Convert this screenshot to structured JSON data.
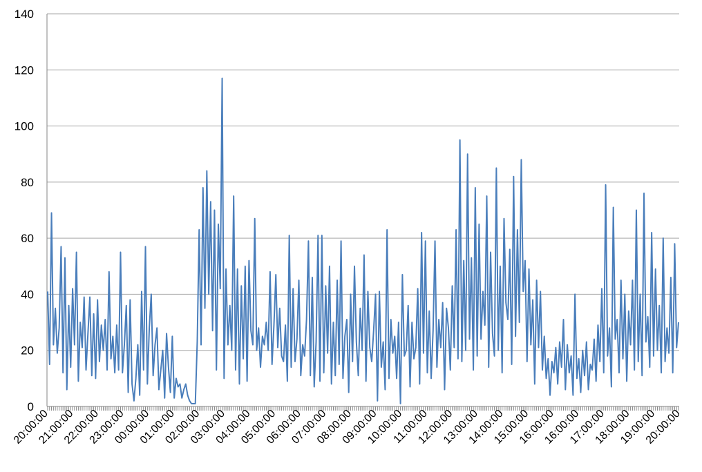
{
  "chart_data": {
    "type": "line",
    "title": "",
    "xlabel": "",
    "ylabel": "",
    "ylim": [
      0,
      140
    ],
    "yticks": [
      0,
      20,
      40,
      60,
      80,
      100,
      120,
      140
    ],
    "grid": "horizontal",
    "x_tick_labels": [
      "20:00:00",
      "21:00:00",
      "22:00:00",
      "23:00:00",
      "00:00:00",
      "01:00:00",
      "02:00:00",
      "03:00:00",
      "04:00:00",
      "05:00:00",
      "06:00:00",
      "07:00:00",
      "08:00:00",
      "09:00:00",
      "10:00:00",
      "11:00:00",
      "12:00:00",
      "13:00:00",
      "14:00:00",
      "15:00:00",
      "16:00:00",
      "16:00:00",
      "17:00:00",
      "18:00:00",
      "19:00:00",
      "20:00:00"
    ],
    "series_color": "#4a7ebb",
    "series": [
      {
        "values": [
          [
            41,
            15,
            69,
            22,
            35,
            19,
            28,
            57,
            12,
            53,
            6,
            36,
            14,
            42,
            22,
            55,
            9,
            30,
            21,
            39,
            13,
            26,
            39,
            11,
            33,
            10,
            38,
            16,
            29,
            20
          ],
          [
            31,
            13,
            48,
            17,
            25,
            12,
            29,
            13,
            55,
            12,
            22,
            36,
            5,
            38,
            8,
            2,
            10,
            22,
            4,
            41,
            13,
            57,
            8,
            28,
            40,
            11,
            22,
            28,
            6,
            13
          ],
          [
            20,
            3,
            26,
            14,
            5,
            25,
            3,
            10,
            7,
            8,
            3,
            6,
            8,
            4,
            2,
            1,
            1,
            1,
            23,
            63,
            22,
            78,
            35,
            84,
            40,
            73,
            27,
            70,
            13,
            65
          ],
          [
            42,
            117,
            10,
            49,
            22,
            36,
            20,
            75,
            13,
            49,
            8,
            43,
            17,
            50,
            9,
            52,
            27,
            22,
            67,
            20,
            28,
            14,
            25,
            22,
            30,
            20,
            48,
            15,
            29,
            47
          ],
          [
            21,
            35,
            18,
            16,
            29,
            9,
            61,
            14,
            42,
            16,
            24,
            45,
            11,
            22,
            18,
            31,
            59,
            11,
            46,
            7,
            23,
            61,
            9,
            61,
            12,
            43,
            19,
            50,
            8,
            30
          ],
          [
            11,
            45,
            15,
            59,
            10,
            25,
            31,
            5,
            40,
            16,
            50,
            23,
            11,
            35,
            20,
            54,
            9,
            41,
            21,
            16,
            27,
            40,
            2,
            41,
            14,
            23,
            6,
            63,
            10,
            31
          ],
          [
            19,
            25,
            10,
            30,
            1,
            47,
            18,
            20,
            36,
            7,
            30,
            17,
            21,
            42,
            8,
            62,
            19,
            59,
            12,
            34,
            10,
            27,
            59,
            14,
            31,
            21,
            37,
            6,
            35,
            28
          ],
          [
            13,
            43,
            21,
            63,
            17,
            95,
            16,
            52,
            20,
            90,
            24,
            53,
            13,
            78,
            18,
            65,
            24,
            41,
            29,
            75,
            14,
            55,
            26,
            18,
            85,
            20,
            50,
            12,
            67,
            37
          ],
          [
            31,
            56,
            15,
            82,
            25,
            63,
            30,
            88,
            41,
            52,
            16,
            49,
            22,
            38,
            8,
            45,
            21,
            41,
            13,
            25,
            10,
            17,
            4,
            16,
            12,
            21,
            8,
            23,
            14,
            31
          ],
          [
            6,
            22,
            12,
            18,
            4,
            40,
            10,
            17,
            5,
            20,
            11,
            23,
            6,
            15,
            13,
            24,
            9,
            29,
            16,
            42,
            12,
            79,
            18,
            28,
            7,
            71,
            24,
            31,
            12,
            45
          ],
          [
            17,
            40,
            9,
            34,
            22,
            45,
            13,
            70,
            16,
            40,
            11,
            76,
            23,
            32,
            14,
            62,
            18,
            49,
            20,
            36,
            12,
            60,
            16,
            28,
            19,
            46,
            12,
            58,
            21,
            30
          ]
        ]
      }
    ]
  }
}
